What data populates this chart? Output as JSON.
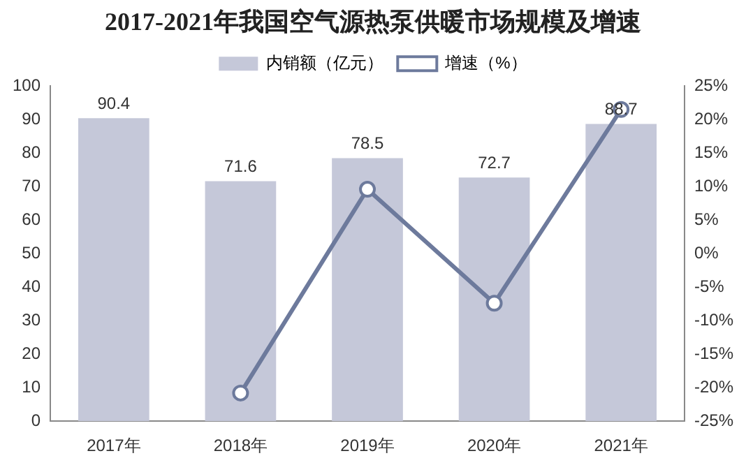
{
  "chart_data": {
    "type": "bar",
    "title": "2017-2021年我国空气源热泵供暖市场规模及增速",
    "categories": [
      "2017年",
      "2018年",
      "2019年",
      "2020年",
      "2021年"
    ],
    "series": [
      {
        "name": "内销额（亿元）",
        "color": "#c5c8d9",
        "values": [
          90.4,
          71.6,
          78.5,
          72.7,
          88.7
        ],
        "value_labels": [
          "90.4",
          "71.6",
          "78.5",
          "72.7",
          "88.7"
        ]
      },
      {
        "name": "增速（%）",
        "type": "line",
        "axis": "y2",
        "color": "#6d7a9c",
        "values": [
          null,
          -20.8,
          9.6,
          -7.4,
          21.5
        ]
      }
    ],
    "ylim": [
      0,
      100
    ],
    "yticks": [
      0,
      10,
      20,
      30,
      40,
      50,
      60,
      70,
      80,
      90,
      100
    ],
    "y2lim": [
      -25,
      25
    ],
    "y2ticks": [
      {
        "value": -25,
        "label": "-25%"
      },
      {
        "value": -20,
        "label": "-20%"
      },
      {
        "value": -15,
        "label": "-15%"
      },
      {
        "value": -10,
        "label": "-10%"
      },
      {
        "value": -5,
        "label": "-5%"
      },
      {
        "value": 0,
        "label": "0%"
      },
      {
        "value": 5,
        "label": "5%"
      },
      {
        "value": 10,
        "label": "10%"
      },
      {
        "value": 15,
        "label": "15%"
      },
      {
        "value": 20,
        "label": "20%"
      },
      {
        "value": 25,
        "label": "25%"
      }
    ],
    "legend": "top",
    "marker": "circle",
    "grid": false
  }
}
